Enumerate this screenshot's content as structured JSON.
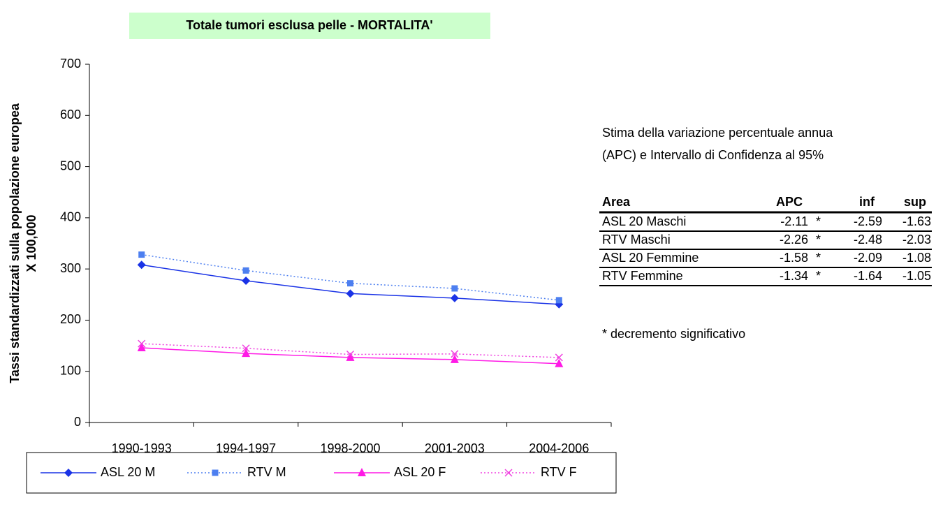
{
  "chart_data": {
    "type": "line",
    "title": "Totale tumori esclusa pelle - MORTALITA'",
    "ylabel": [
      "Tassi standardizzati sulla popolazione europea",
      "X 100,000"
    ],
    "categories": [
      "1990-1993",
      "1994-1997",
      "1998-2000",
      "2001-2003",
      "2004-2006"
    ],
    "series": [
      {
        "name": "ASL 20 M",
        "color": "#1a33e6",
        "line_style": "solid",
        "marker": "diamond",
        "values": [
          308,
          277,
          252,
          243,
          231
        ]
      },
      {
        "name": "RTV M",
        "color": "#4d7ff0",
        "line_style": "dotted",
        "marker": "square",
        "values": [
          328,
          297,
          272,
          262,
          239
        ]
      },
      {
        "name": "ASL 20 F",
        "color": "#ff1ae6",
        "line_style": "solid",
        "marker": "triangle",
        "values": [
          146,
          135,
          127,
          123,
          115
        ]
      },
      {
        "name": "RTV F",
        "color": "#f040e0",
        "line_style": "dotted",
        "marker": "x",
        "values": [
          154,
          145,
          133,
          134,
          127
        ]
      }
    ],
    "ylim": [
      0,
      700
    ],
    "yticks": [
      0,
      100,
      200,
      300,
      400,
      500,
      600,
      700
    ],
    "legend": "bottom"
  },
  "table": {
    "note": [
      "Stima della variazione percentuale annua",
      "(APC) e Intervallo di Confidenza al 95%"
    ],
    "header": [
      "Area",
      "APC",
      "inf",
      "sup"
    ],
    "rows": [
      [
        "ASL 20 Maschi",
        -2.11,
        "*",
        -2.59,
        -1.63
      ],
      [
        "RTV Maschi",
        -2.26,
        "*",
        -2.48,
        -2.03
      ],
      [
        "ASL 20 Femmine",
        -1.58,
        "*",
        -2.09,
        -1.08
      ],
      [
        "RTV Femmine",
        -1.34,
        "*",
        -1.64,
        -1.05
      ]
    ],
    "footnote": "* decremento significativo"
  }
}
